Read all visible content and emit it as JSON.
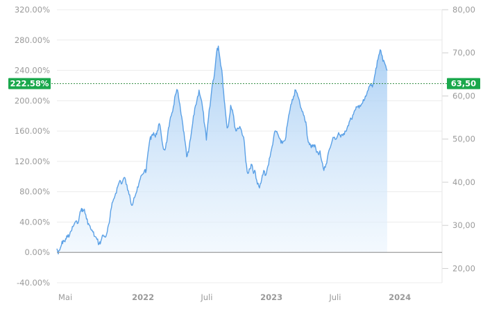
{
  "chart_data": {
    "type": "area",
    "left_axis": {
      "ticks": [
        "320.00%",
        "280.00%",
        "240.00%",
        "200.00%",
        "160.00%",
        "120.00%",
        "80.00%",
        "40.00%",
        "0.00%",
        "-40.00%"
      ],
      "values": [
        320,
        280,
        240,
        200,
        160,
        120,
        80,
        40,
        0,
        -40
      ],
      "range": [
        -40,
        320
      ]
    },
    "right_axis": {
      "ticks": [
        "80,00",
        "70,00",
        "60,00",
        "50,00",
        "40,00",
        "30,00",
        "20,00"
      ],
      "values": [
        80,
        70,
        60,
        50,
        40,
        30,
        20
      ],
      "range": [
        16.7,
        80
      ]
    },
    "x_axis": {
      "labels": [
        {
          "text": "Mai",
          "date": "2021-05-01",
          "bold": false
        },
        {
          "text": "2022",
          "date": "2022-01-01",
          "bold": true
        },
        {
          "text": "Juli",
          "date": "2022-07-01",
          "bold": false
        },
        {
          "text": "2023",
          "date": "2023-01-01",
          "bold": true
        },
        {
          "text": "Juli",
          "date": "2023-07-01",
          "bold": false
        },
        {
          "text": "2024",
          "date": "2024-01-01",
          "bold": true
        }
      ],
      "range": [
        "2021-05-01",
        "2024-04-30"
      ]
    },
    "current": {
      "percent_label": "222.58%",
      "price_label": "63,50",
      "percent": 222.58,
      "price": 63.5
    },
    "baseline_percent": 0,
    "series": [
      {
        "points": [
          [
            "2021-05-01",
            5
          ],
          [
            "2021-05-05",
            -2
          ],
          [
            "2021-05-09",
            3
          ],
          [
            "2021-05-14",
            10
          ],
          [
            "2021-05-19",
            16
          ],
          [
            "2021-05-24",
            14
          ],
          [
            "2021-05-29",
            22
          ],
          [
            "2021-06-04",
            20
          ],
          [
            "2021-06-10",
            28
          ],
          [
            "2021-06-16",
            34
          ],
          [
            "2021-06-22",
            40
          ],
          [
            "2021-06-28",
            38
          ],
          [
            "2021-07-04",
            48
          ],
          [
            "2021-07-10",
            58
          ],
          [
            "2021-07-14",
            54
          ],
          [
            "2021-07-18",
            57
          ],
          [
            "2021-07-24",
            44
          ],
          [
            "2021-07-30",
            38
          ],
          [
            "2021-08-05",
            31
          ],
          [
            "2021-08-11",
            27
          ],
          [
            "2021-08-17",
            21
          ],
          [
            "2021-08-23",
            17
          ],
          [
            "2021-08-29",
            11
          ],
          [
            "2021-09-03",
            15
          ],
          [
            "2021-09-09",
            23
          ],
          [
            "2021-09-15",
            20
          ],
          [
            "2021-09-21",
            27
          ],
          [
            "2021-09-27",
            39
          ],
          [
            "2021-10-03",
            59
          ],
          [
            "2021-10-09",
            70
          ],
          [
            "2021-10-15",
            78
          ],
          [
            "2021-10-21",
            87
          ],
          [
            "2021-10-27",
            95
          ],
          [
            "2021-11-02",
            91
          ],
          [
            "2021-11-07",
            98
          ],
          [
            "2021-11-12",
            96
          ],
          [
            "2021-11-18",
            82
          ],
          [
            "2021-11-24",
            76
          ],
          [
            "2021-11-30",
            62
          ],
          [
            "2021-12-06",
            72
          ],
          [
            "2021-12-12",
            78
          ],
          [
            "2021-12-18",
            86
          ],
          [
            "2021-12-24",
            97
          ],
          [
            "2021-12-30",
            103
          ],
          [
            "2022-01-05",
            108
          ],
          [
            "2022-01-10",
            108
          ],
          [
            "2022-01-15",
            132
          ],
          [
            "2022-01-20",
            148
          ],
          [
            "2022-01-25",
            154
          ],
          [
            "2022-01-31",
            158
          ],
          [
            "2022-02-05",
            152
          ],
          [
            "2022-02-10",
            160
          ],
          [
            "2022-02-16",
            170
          ],
          [
            "2022-02-22",
            154
          ],
          [
            "2022-02-28",
            136
          ],
          [
            "2022-03-06",
            138
          ],
          [
            "2022-03-11",
            152
          ],
          [
            "2022-03-16",
            166
          ],
          [
            "2022-03-22",
            180
          ],
          [
            "2022-03-28",
            192
          ],
          [
            "2022-04-03",
            208
          ],
          [
            "2022-04-09",
            214
          ],
          [
            "2022-04-14",
            198
          ],
          [
            "2022-04-19",
            182
          ],
          [
            "2022-04-24",
            168
          ],
          [
            "2022-04-29",
            150
          ],
          [
            "2022-05-05",
            126
          ],
          [
            "2022-05-10",
            132
          ],
          [
            "2022-05-16",
            150
          ],
          [
            "2022-05-22",
            170
          ],
          [
            "2022-05-28",
            190
          ],
          [
            "2022-06-03",
            200
          ],
          [
            "2022-06-09",
            214
          ],
          [
            "2022-06-15",
            202
          ],
          [
            "2022-06-20",
            188
          ],
          [
            "2022-06-25",
            168
          ],
          [
            "2022-06-30",
            148
          ],
          [
            "2022-07-06",
            178
          ],
          [
            "2022-07-12",
            200
          ],
          [
            "2022-07-17",
            222
          ],
          [
            "2022-07-23",
            236
          ],
          [
            "2022-07-29",
            264
          ],
          [
            "2022-08-03",
            272
          ],
          [
            "2022-08-08",
            254
          ],
          [
            "2022-08-13",
            240
          ],
          [
            "2022-08-18",
            212
          ],
          [
            "2022-08-23",
            186
          ],
          [
            "2022-08-28",
            164
          ],
          [
            "2022-09-02",
            172
          ],
          [
            "2022-09-07",
            194
          ],
          [
            "2022-09-12",
            188
          ],
          [
            "2022-09-17",
            172
          ],
          [
            "2022-09-22",
            160
          ],
          [
            "2022-09-27",
            164
          ],
          [
            "2022-10-03",
            166
          ],
          [
            "2022-10-08",
            160
          ],
          [
            "2022-10-14",
            152
          ],
          [
            "2022-10-20",
            120
          ],
          [
            "2022-10-26",
            104
          ],
          [
            "2022-11-01",
            110
          ],
          [
            "2022-11-06",
            116
          ],
          [
            "2022-11-11",
            104
          ],
          [
            "2022-11-16",
            106
          ],
          [
            "2022-11-22",
            90
          ],
          [
            "2022-11-28",
            85
          ],
          [
            "2022-12-04",
            96
          ],
          [
            "2022-12-10",
            108
          ],
          [
            "2022-12-16",
            102
          ],
          [
            "2022-12-22",
            114
          ],
          [
            "2022-12-28",
            126
          ],
          [
            "2023-01-03",
            140
          ],
          [
            "2023-01-08",
            154
          ],
          [
            "2023-01-13",
            160
          ],
          [
            "2023-01-18",
            157
          ],
          [
            "2023-01-23",
            151
          ],
          [
            "2023-01-28",
            144
          ],
          [
            "2023-02-03",
            146
          ],
          [
            "2023-02-09",
            148
          ],
          [
            "2023-02-15",
            168
          ],
          [
            "2023-02-21",
            184
          ],
          [
            "2023-02-27",
            196
          ],
          [
            "2023-03-05",
            206
          ],
          [
            "2023-03-11",
            214
          ],
          [
            "2023-03-17",
            206
          ],
          [
            "2023-03-23",
            196
          ],
          [
            "2023-03-29",
            186
          ],
          [
            "2023-04-04",
            180
          ],
          [
            "2023-04-09",
            172
          ],
          [
            "2023-04-14",
            150
          ],
          [
            "2023-04-19",
            142
          ],
          [
            "2023-04-24",
            138
          ],
          [
            "2023-04-29",
            142
          ],
          [
            "2023-05-04",
            142
          ],
          [
            "2023-05-09",
            132
          ],
          [
            "2023-05-14",
            130
          ],
          [
            "2023-05-19",
            134
          ],
          [
            "2023-05-24",
            120
          ],
          [
            "2023-05-30",
            108
          ],
          [
            "2023-06-05",
            116
          ],
          [
            "2023-06-11",
            130
          ],
          [
            "2023-06-17",
            138
          ],
          [
            "2023-06-23",
            148
          ],
          [
            "2023-06-29",
            152
          ],
          [
            "2023-07-05",
            150
          ],
          [
            "2023-07-11",
            158
          ],
          [
            "2023-07-17",
            152
          ],
          [
            "2023-07-23",
            154
          ],
          [
            "2023-07-29",
            160
          ],
          [
            "2023-08-04",
            164
          ],
          [
            "2023-08-10",
            172
          ],
          [
            "2023-08-16",
            176
          ],
          [
            "2023-08-22",
            182
          ],
          [
            "2023-08-28",
            188
          ],
          [
            "2023-09-03",
            192
          ],
          [
            "2023-09-09",
            194
          ],
          [
            "2023-09-15",
            196
          ],
          [
            "2023-09-21",
            200
          ],
          [
            "2023-09-27",
            206
          ],
          [
            "2023-10-03",
            214
          ],
          [
            "2023-10-09",
            222
          ],
          [
            "2023-10-15",
            218
          ],
          [
            "2023-10-21",
            232
          ],
          [
            "2023-10-27",
            244
          ],
          [
            "2023-11-02",
            260
          ],
          [
            "2023-11-08",
            266
          ],
          [
            "2023-11-14",
            252
          ],
          [
            "2023-11-20",
            248
          ],
          [
            "2023-11-26",
            240
          ]
        ]
      }
    ]
  }
}
